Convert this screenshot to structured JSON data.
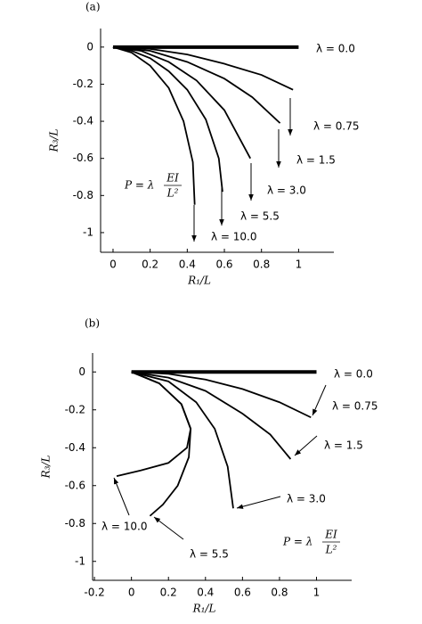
{
  "chart_data": [
    {
      "type": "line",
      "panel_label": "(a)",
      "xlabel": "R₁/L",
      "ylabel": "R₃/L",
      "formula_lhs": "P = λ",
      "formula_num": "EI",
      "formula_den": "L²",
      "xlim": [
        -0.067,
        1.19
      ],
      "ylim": [
        -1.106,
        0.1
      ],
      "xticks": [
        0,
        0.2,
        0.4,
        0.6,
        0.8,
        1
      ],
      "yticks": [
        0,
        -0.2,
        -0.4,
        -0.6,
        -0.8,
        -1
      ],
      "series": [
        {
          "name": "λ = 0.0",
          "color": "#000000",
          "x": [
            0,
            1.0
          ],
          "values": [
            0,
            0
          ]
        },
        {
          "name": "λ = 0.75",
          "color": "#000000",
          "x": [
            0,
            0.2,
            0.4,
            0.6,
            0.8,
            0.97
          ],
          "values": [
            0,
            -0.01,
            -0.04,
            -0.09,
            -0.15,
            -0.23
          ]
        },
        {
          "name": "λ = 1.5",
          "color": "#000000",
          "x": [
            0,
            0.2,
            0.4,
            0.6,
            0.75,
            0.9
          ],
          "values": [
            0,
            -0.02,
            -0.08,
            -0.17,
            -0.27,
            -0.41
          ]
        },
        {
          "name": "λ = 3.0",
          "color": "#000000",
          "x": [
            0,
            0.15,
            0.3,
            0.45,
            0.6,
            0.74
          ],
          "values": [
            0,
            -0.02,
            -0.08,
            -0.18,
            -0.34,
            -0.6
          ]
        },
        {
          "name": "λ = 5.5",
          "color": "#000000",
          "x": [
            0,
            0.1,
            0.2,
            0.3,
            0.4,
            0.5,
            0.57,
            0.59
          ],
          "values": [
            0,
            -0.02,
            -0.06,
            -0.13,
            -0.23,
            -0.39,
            -0.6,
            -0.78
          ]
        },
        {
          "name": "λ = 10.0",
          "color": "#000000",
          "x": [
            0,
            0.1,
            0.2,
            0.3,
            0.38,
            0.43,
            0.44
          ],
          "values": [
            0,
            -0.03,
            -0.1,
            -0.22,
            -0.4,
            -0.62,
            -0.85
          ]
        }
      ]
    },
    {
      "type": "line",
      "panel_label": "(b)",
      "xlabel": "R₁/L",
      "ylabel": "R₃/L",
      "formula_lhs": "P = λ",
      "formula_num": "EI",
      "formula_den": "L²",
      "xlim": [
        -0.21,
        1.19
      ],
      "ylim": [
        -1.1,
        0.1
      ],
      "xticks": [
        -0.2,
        0,
        0.2,
        0.4,
        0.6,
        0.8,
        1
      ],
      "yticks": [
        0,
        -0.2,
        -0.4,
        -0.6,
        -0.8,
        -1
      ],
      "series": [
        {
          "name": "λ = 0.0",
          "color": "#000000",
          "x": [
            0,
            1.0
          ],
          "values": [
            0,
            0
          ]
        },
        {
          "name": "λ = 0.75",
          "color": "#000000",
          "x": [
            0,
            0.2,
            0.4,
            0.6,
            0.8,
            0.97
          ],
          "values": [
            0,
            -0.01,
            -0.04,
            -0.09,
            -0.16,
            -0.24
          ]
        },
        {
          "name": "λ = 1.5",
          "color": "#000000",
          "x": [
            0,
            0.2,
            0.4,
            0.6,
            0.75,
            0.86
          ],
          "values": [
            0,
            -0.03,
            -0.1,
            -0.22,
            -0.33,
            -0.46
          ]
        },
        {
          "name": "λ = 3.0",
          "color": "#000000",
          "x": [
            0,
            0.2,
            0.35,
            0.45,
            0.52,
            0.55
          ],
          "values": [
            0,
            -0.05,
            -0.16,
            -0.3,
            -0.5,
            -0.72
          ]
        },
        {
          "name": "λ = 5.5",
          "color": "#000000",
          "x": [
            0,
            0.15,
            0.27,
            0.32,
            0.31,
            0.25,
            0.17,
            0.1
          ],
          "values": [
            0,
            -0.06,
            -0.17,
            -0.3,
            -0.45,
            -0.6,
            -0.7,
            -0.76
          ]
        },
        {
          "name": "λ = 10.0",
          "color": "#000000",
          "x": [
            0,
            0.15,
            0.27,
            0.32,
            0.3,
            0.2,
            0.05,
            -0.08
          ],
          "values": [
            0,
            -0.06,
            -0.17,
            -0.3,
            -0.4,
            -0.48,
            -0.52,
            -0.55
          ]
        }
      ]
    }
  ]
}
